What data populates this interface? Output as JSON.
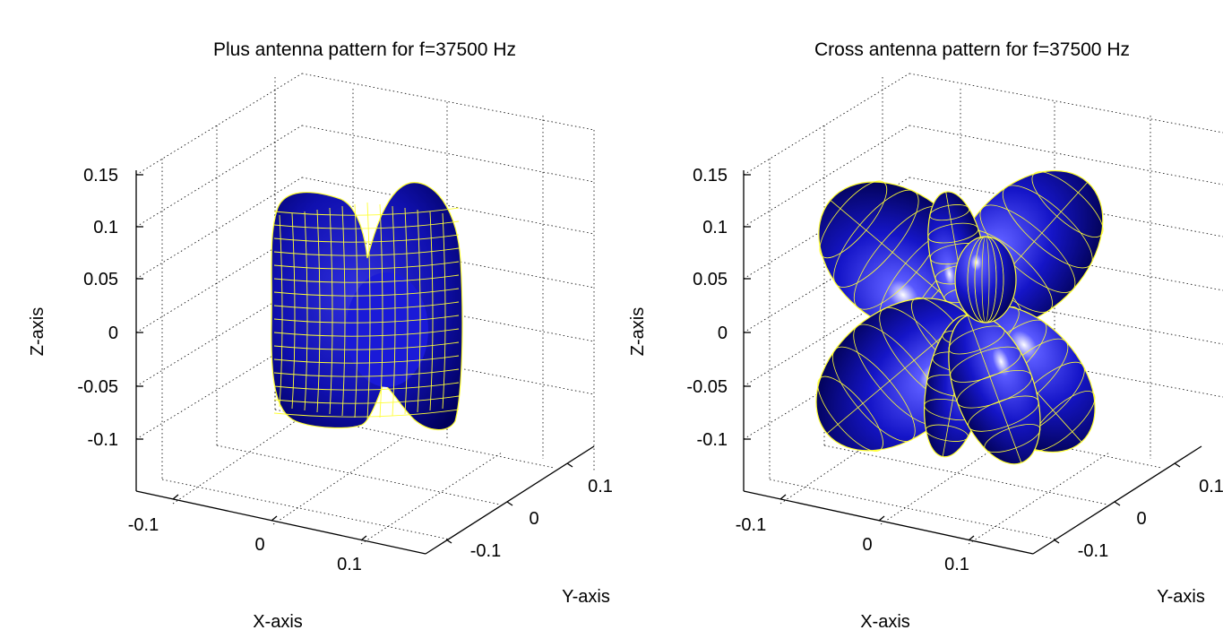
{
  "chart_data": [
    {
      "type": "surface3d",
      "title": "Plus antenna pattern for f=37500 Hz",
      "xlabel": "X-axis",
      "ylabel": "Y-axis",
      "zlabel": "Z-axis",
      "xticks": [
        "-0.1",
        "0",
        "0.1"
      ],
      "yticks": [
        "-0.1",
        "0",
        "0.1"
      ],
      "zticks": [
        "0.15",
        "0.1",
        "0.05",
        "0",
        "-0.05",
        "-0.1"
      ],
      "xlim": [
        -0.15,
        0.15
      ],
      "ylim": [
        -0.15,
        0.15
      ],
      "zlim": [
        -0.15,
        0.2
      ],
      "grid": true,
      "surface_color": "#0a0ab4",
      "mesh_color": "#ffff33",
      "pattern": "plus",
      "lobes": 4,
      "max_extent": 0.15
    },
    {
      "type": "surface3d",
      "title": "Cross antenna pattern for f=37500 Hz",
      "xlabel": "X-axis",
      "ylabel": "Y-axis",
      "zlabel": "Z-axis",
      "xticks": [
        "-0.1",
        "0",
        "0.1"
      ],
      "yticks": [
        "-0.1",
        "0",
        "0.1"
      ],
      "zticks": [
        "0.15",
        "0.1",
        "0.05",
        "0",
        "-0.05",
        "-0.1"
      ],
      "xlim": [
        -0.15,
        0.15
      ],
      "ylim": [
        -0.15,
        0.15
      ],
      "zlim": [
        -0.15,
        0.2
      ],
      "grid": true,
      "surface_color": "#0a0ab4",
      "mesh_color": "#ffff33",
      "pattern": "cross",
      "lobes": 8,
      "max_extent": 0.19
    }
  ]
}
